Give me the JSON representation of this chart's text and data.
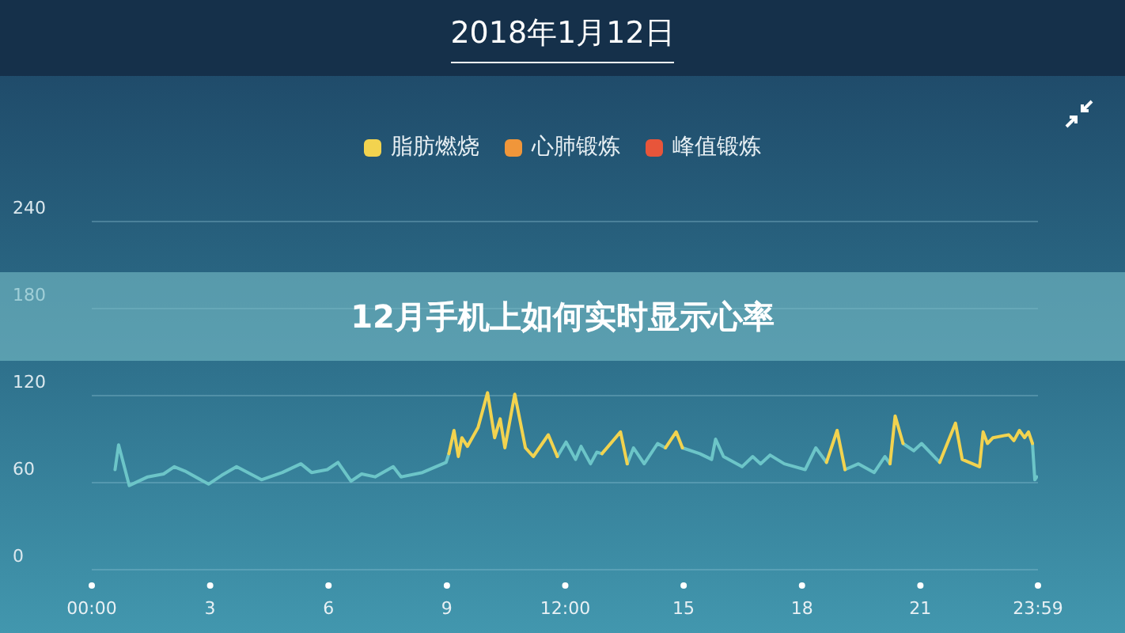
{
  "chart_data": {
    "type": "line",
    "title": "2018年1月12日",
    "annotations": [
      "12月手机上如何实时显示心率"
    ],
    "x": [
      0.59,
      0.68,
      0.95,
      1.42,
      1.82,
      2.09,
      2.36,
      2.96,
      3.29,
      3.67,
      4.3,
      4.83,
      5.3,
      5.57,
      5.97,
      6.24,
      6.57,
      6.84,
      7.18,
      7.64,
      7.84,
      8.38,
      8.98,
      9.05,
      9.18,
      9.29,
      9.38,
      9.52,
      9.79,
      10.03,
      10.21,
      10.35,
      10.47,
      10.72,
      10.99,
      11.19,
      11.57,
      11.8,
      12.02,
      12.26,
      12.4,
      12.64,
      12.8,
      12.93,
      13.4,
      13.57,
      13.73,
      14.0,
      14.34,
      14.54,
      14.81,
      14.97,
      15.41,
      15.71,
      15.81,
      16.01,
      16.48,
      16.75,
      16.95,
      17.19,
      17.55,
      18.08,
      18.35,
      18.62,
      18.89,
      19.09,
      19.43,
      19.83,
      20.1,
      20.23,
      20.36,
      20.56,
      20.83,
      21.03,
      21.49,
      21.89,
      22.06,
      22.5,
      22.59,
      22.7,
      22.84,
      23.24,
      23.37,
      23.51,
      23.64,
      23.74,
      23.84,
      23.9,
      23.95
    ],
    "series": [
      {
        "color": "#6cc5c8",
        "values": [
          69,
          86,
          58,
          64,
          66,
          71,
          68,
          59,
          65,
          71,
          62,
          67,
          73,
          67,
          69,
          74,
          61,
          66,
          64,
          71,
          64,
          67,
          74,
          80,
          null,
          null,
          null,
          null,
          null,
          null,
          null,
          null,
          null,
          null,
          null,
          null,
          null,
          78,
          88,
          76,
          85,
          73,
          81,
          80,
          null,
          73,
          84,
          73,
          87,
          84,
          null,
          84,
          80,
          76,
          90,
          78,
          71,
          78,
          73,
          79,
          73,
          69,
          84,
          74,
          null,
          69,
          73,
          67,
          78,
          73,
          null,
          87,
          82,
          87,
          74,
          null,
          null,
          null,
          null,
          null,
          null,
          null,
          null,
          null,
          null,
          null,
          87,
          62,
          64
        ]
      },
      {
        "name": "脂肪燃烧",
        "color": "#f2d34f",
        "values": [
          null,
          null,
          null,
          null,
          null,
          null,
          null,
          null,
          null,
          null,
          null,
          null,
          null,
          null,
          null,
          null,
          null,
          null,
          null,
          null,
          null,
          null,
          null,
          80,
          96,
          78,
          91,
          85,
          98,
          122,
          91,
          104,
          84,
          121,
          84,
          78,
          93,
          78,
          null,
          null,
          null,
          null,
          null,
          80,
          95,
          73,
          null,
          null,
          null,
          84,
          95,
          84,
          null,
          null,
          null,
          null,
          null,
          null,
          null,
          null,
          null,
          null,
          null,
          74,
          96,
          69,
          null,
          null,
          null,
          73,
          106,
          87,
          null,
          null,
          74,
          101,
          76,
          71,
          95,
          87,
          91,
          93,
          89,
          96,
          91,
          95,
          87,
          null,
          null
        ]
      },
      {
        "name": "心肺锻炼",
        "color": "#f0963a",
        "values": [
          null,
          null,
          null,
          null,
          null,
          null,
          null,
          null,
          null,
          null,
          null,
          null,
          null,
          null,
          null,
          null,
          null,
          null,
          null,
          null,
          null,
          null,
          null,
          null,
          null,
          null,
          null,
          null,
          null,
          null,
          null,
          null,
          null,
          null,
          null,
          null,
          null,
          null,
          null,
          null,
          null,
          null,
          null,
          null,
          null,
          null,
          null,
          null,
          null,
          null,
          null,
          null,
          null,
          null,
          null,
          null,
          null,
          null,
          null,
          null,
          null,
          null,
          null,
          null,
          null,
          null,
          null,
          null,
          null,
          null,
          null,
          null,
          null,
          null,
          null,
          null,
          null,
          null,
          null,
          null,
          null,
          null,
          null,
          null,
          null,
          null,
          null,
          null,
          null
        ]
      },
      {
        "name": "峰值锻炼",
        "color": "#e8553a",
        "values": [
          null,
          null,
          null,
          null,
          null,
          null,
          null,
          null,
          null,
          null,
          null,
          null,
          null,
          null,
          null,
          null,
          null,
          null,
          null,
          null,
          null,
          null,
          null,
          null,
          null,
          null,
          null,
          null,
          null,
          null,
          null,
          null,
          null,
          null,
          null,
          null,
          null,
          null,
          null,
          null,
          null,
          null,
          null,
          null,
          null,
          null,
          null,
          null,
          null,
          null,
          null,
          null,
          null,
          null,
          null,
          null,
          null,
          null,
          null,
          null,
          null,
          null,
          null,
          null,
          null,
          null,
          null,
          null,
          null,
          null,
          null,
          null,
          null,
          null,
          null,
          null,
          null,
          null,
          null,
          null,
          null,
          null,
          null,
          null,
          null,
          null,
          null,
          null,
          null
        ]
      }
    ],
    "xlim": [
      0,
      23.98
    ],
    "xticks": [
      {
        "value": 0,
        "label": "00:00"
      },
      3,
      6,
      9,
      {
        "value": 12,
        "label": "12:00"
      },
      15,
      18,
      21,
      {
        "value": 23.98,
        "label": "23:59"
      }
    ],
    "ylim": [
      0,
      240
    ],
    "yticks": [
      0,
      60,
      120,
      180,
      240
    ],
    "grid": "y",
    "legend": "top",
    "marker": "none"
  }
}
